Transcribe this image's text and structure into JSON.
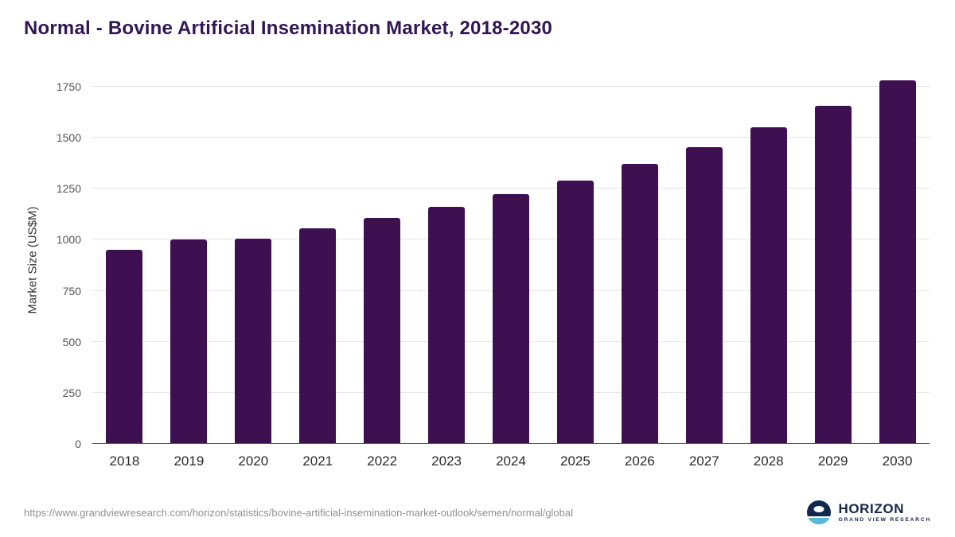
{
  "title": "Normal - Bovine Artificial Insemination Market, 2018-2030",
  "colors": {
    "bar": "#3e1052",
    "title": "#2f1654"
  },
  "chart_data": {
    "type": "bar",
    "title": "Normal - Bovine Artificial Insemination Market, 2018-2030",
    "categories": [
      "2018",
      "2019",
      "2020",
      "2021",
      "2022",
      "2023",
      "2024",
      "2025",
      "2026",
      "2027",
      "2028",
      "2029",
      "2030"
    ],
    "values": [
      950,
      1000,
      1005,
      1055,
      1105,
      1160,
      1225,
      1290,
      1370,
      1455,
      1550,
      1655,
      1780
    ],
    "xlabel": "",
    "ylabel": "Market Size (US$M)",
    "yticks": [
      0,
      250,
      500,
      750,
      1000,
      1250,
      1500,
      1750
    ],
    "ylim": [
      0,
      1800
    ],
    "grid": true,
    "legend": "none"
  },
  "footer": {
    "source_url": "https://www.grandviewresearch.com/horizon/statistics/bovine-artificial-insemination-market-outlook/semen/normal/global",
    "logo": {
      "brand": "HORIZON",
      "tagline": "GRAND VIEW RESEARCH"
    }
  }
}
